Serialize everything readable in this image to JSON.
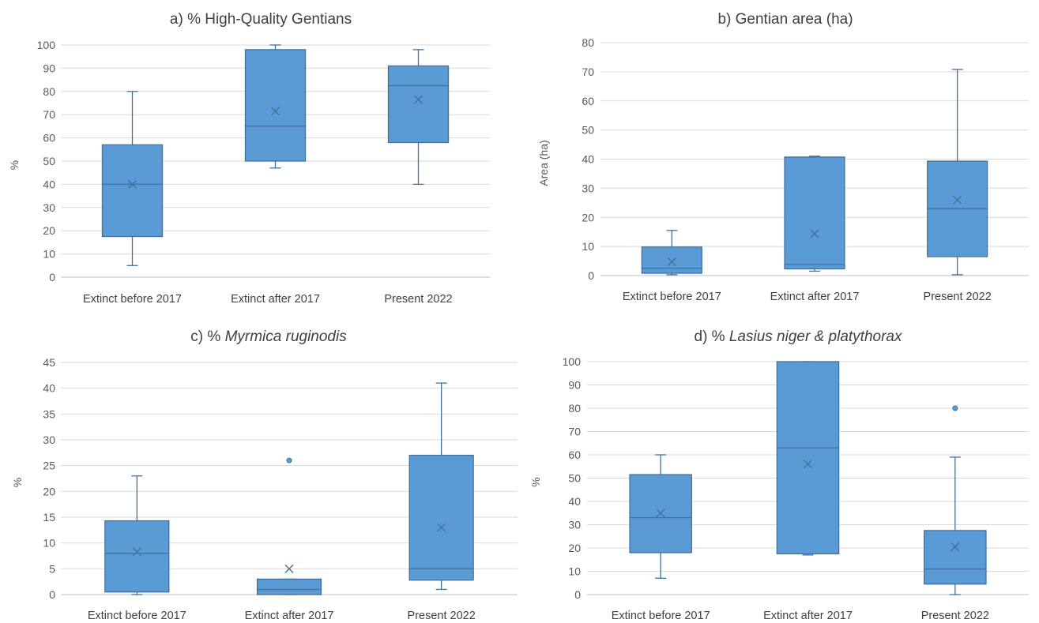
{
  "chart_data": [
    {
      "id": "a",
      "type": "boxplot",
      "title": "a) % High-Quality Gentians",
      "title_parts": [
        {
          "text": "a) % High-Quality Gentians",
          "italic": false
        }
      ],
      "ylabel": "%",
      "ylim": [
        0,
        100
      ],
      "yticks": [
        0,
        10,
        20,
        30,
        40,
        50,
        60,
        70,
        80,
        90,
        100
      ],
      "categories": [
        "Extinct before 2017",
        "Extinct after 2017",
        "Present 2022"
      ],
      "boxes": [
        {
          "min": 5,
          "q1": 17.5,
          "median": 40,
          "q3": 57,
          "max": 80,
          "mean": 40,
          "outliers": []
        },
        {
          "min": 47,
          "q1": 50,
          "median": 65,
          "q3": 98,
          "max": 100,
          "mean": 71.5,
          "outliers": []
        },
        {
          "min": 40,
          "q1": 58,
          "median": 82.5,
          "q3": 91,
          "max": 98,
          "mean": 76.5,
          "outliers": []
        }
      ]
    },
    {
      "id": "b",
      "type": "boxplot",
      "title": "b) Gentian area (ha)",
      "title_parts": [
        {
          "text": "b) Gentian area (ha)",
          "italic": false
        }
      ],
      "ylabel": "Area (ha)",
      "ylim": [
        0,
        80
      ],
      "yticks": [
        0,
        10,
        20,
        30,
        40,
        50,
        60,
        70,
        80
      ],
      "categories": [
        "Extinct before 2017",
        "Extinct after 2017",
        "Present 2022"
      ],
      "boxes": [
        {
          "min": 0.3,
          "q1": 0.8,
          "median": 2.5,
          "q3": 9.8,
          "max": 15.5,
          "mean": 4.7,
          "outliers": []
        },
        {
          "min": 1.5,
          "q1": 2.3,
          "median": 3.8,
          "q3": 40.7,
          "max": 41,
          "mean": 14.4,
          "outliers": []
        },
        {
          "min": 0.3,
          "q1": 6.5,
          "median": 23,
          "q3": 39.3,
          "max": 70.8,
          "mean": 26,
          "outliers": []
        }
      ]
    },
    {
      "id": "c",
      "type": "boxplot",
      "title": "c) % Myrmica ruginodis",
      "title_parts": [
        {
          "text": "c) % ",
          "italic": false
        },
        {
          "text": "Myrmica ruginodis",
          "italic": true
        }
      ],
      "ylabel": "%",
      "ylim": [
        0,
        45
      ],
      "yticks": [
        0,
        5,
        10,
        15,
        20,
        25,
        30,
        35,
        40,
        45
      ],
      "categories": [
        "Extinct before 2017",
        "Extinct after 2017",
        "Present 2022"
      ],
      "boxes": [
        {
          "min": 0,
          "q1": 0.5,
          "median": 8,
          "q3": 14.3,
          "max": 23,
          "mean": 8.3,
          "outliers": []
        },
        {
          "min": 0,
          "q1": 0,
          "median": 1,
          "q3": 3,
          "max": 3,
          "mean": 5,
          "outliers": [
            26
          ]
        },
        {
          "min": 1,
          "q1": 2.8,
          "median": 5,
          "q3": 27,
          "max": 41,
          "mean": 13,
          "outliers": []
        }
      ]
    },
    {
      "id": "d",
      "type": "boxplot",
      "title": "d) % Lasius niger & platythorax",
      "title_parts": [
        {
          "text": "d) % ",
          "italic": false
        },
        {
          "text": "Lasius niger & platythorax",
          "italic": true
        }
      ],
      "ylabel": "%",
      "ylim": [
        0,
        100
      ],
      "yticks": [
        0,
        10,
        20,
        30,
        40,
        50,
        60,
        70,
        80,
        90,
        100
      ],
      "categories": [
        "Extinct before 2017",
        "Extinct after 2017",
        "Present 2022"
      ],
      "boxes": [
        {
          "min": 7,
          "q1": 18,
          "median": 33,
          "q3": 51.5,
          "max": 60,
          "mean": 35,
          "outliers": []
        },
        {
          "min": 17,
          "q1": 17.5,
          "median": 63,
          "q3": 100,
          "max": 100,
          "mean": 56,
          "outliers": []
        },
        {
          "min": 0,
          "q1": 4.5,
          "median": 11,
          "q3": 27.5,
          "max": 59,
          "mean": 20.5,
          "outliers": [
            80
          ]
        }
      ]
    }
  ],
  "colors": {
    "box_fill": "#5b9bd5",
    "box_stroke": "#41719c",
    "whisker": "#41719c",
    "mean_marker": "#41719c",
    "gridline": "#d9d9d9",
    "axis": "#bfbfbf"
  }
}
